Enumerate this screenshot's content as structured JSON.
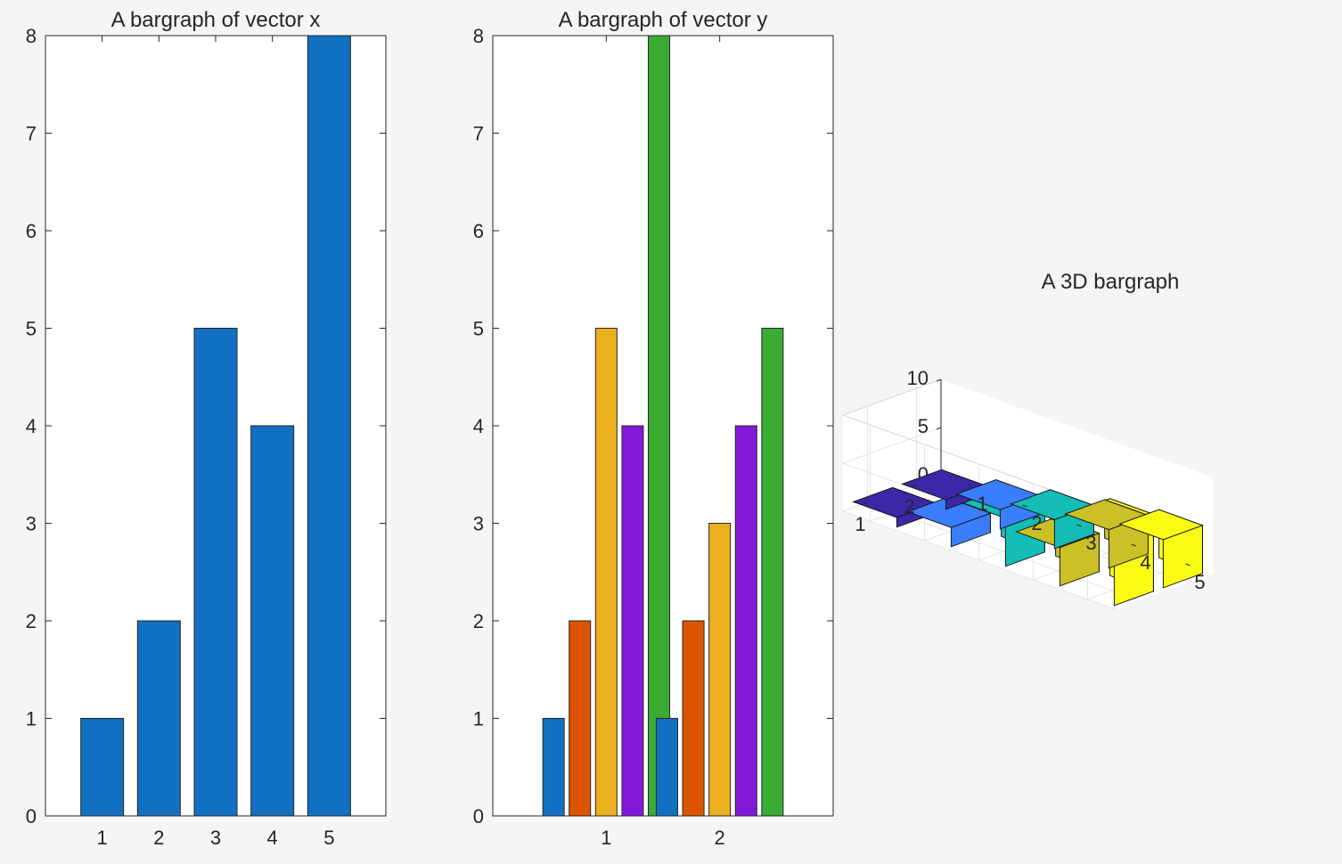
{
  "chart_data": [
    {
      "type": "bar",
      "title": "A bargraph of vector x",
      "categories": [
        "1",
        "2",
        "3",
        "4",
        "5"
      ],
      "values": [
        1,
        2,
        5,
        4,
        8
      ],
      "ylim": [
        0,
        8
      ],
      "yticks": [
        0,
        1,
        2,
        3,
        4,
        5,
        6,
        7,
        8
      ],
      "color": "#1170c1",
      "grid": false
    },
    {
      "type": "bar",
      "title": "A bargraph of vector y",
      "categories": [
        "1",
        "2"
      ],
      "series": [
        {
          "values": [
            1,
            1
          ],
          "color": "#1170c1"
        },
        {
          "values": [
            2,
            2
          ],
          "color": "#dd5400"
        },
        {
          "values": [
            5,
            3
          ],
          "color": "#ecb01f"
        },
        {
          "values": [
            4,
            4
          ],
          "color": "#8418d9"
        },
        {
          "values": [
            8,
            5
          ],
          "color": "#3aab35"
        }
      ],
      "ylim": [
        0,
        8
      ],
      "yticks": [
        0,
        1,
        2,
        3,
        4,
        5,
        6,
        7,
        8
      ],
      "grid": false
    },
    {
      "type": "bar3",
      "title": "A 3D bargraph",
      "rows": [
        "1",
        "2"
      ],
      "columns": [
        "1",
        "2",
        "3",
        "4",
        "5"
      ],
      "values": [
        [
          1,
          2,
          5,
          4,
          8
        ],
        [
          1,
          2,
          3,
          4,
          5
        ]
      ],
      "column_colors": [
        "#3d26a8",
        "#3a7eff",
        "#14bdb6",
        "#cbc026",
        "#f9fb15"
      ],
      "zlim": [
        0,
        10
      ],
      "zticks": [
        0,
        5,
        10
      ],
      "grid": true
    }
  ]
}
